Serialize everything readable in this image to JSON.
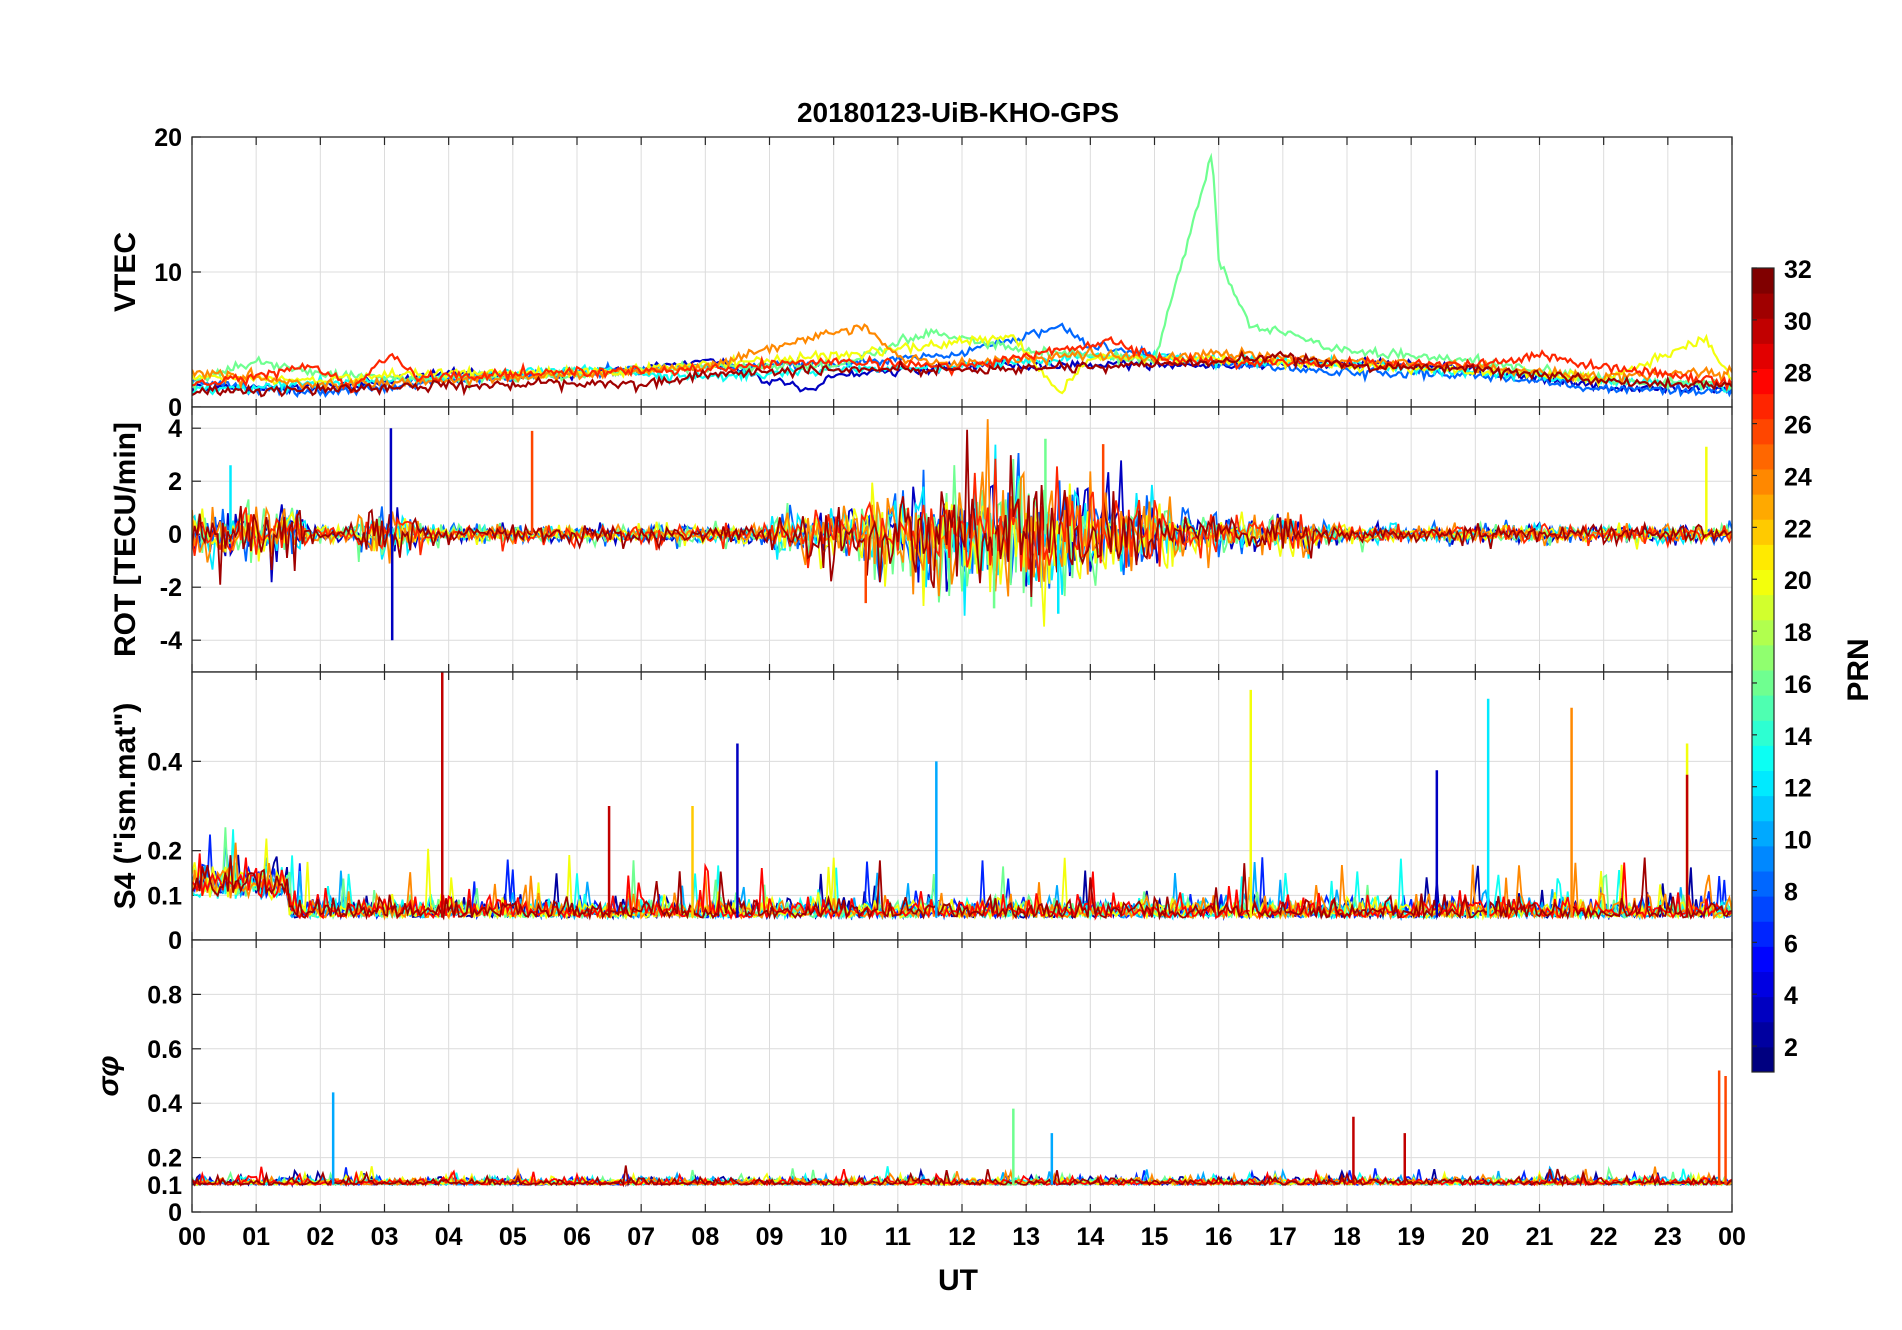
{
  "figure": {
    "title": "20180123-UiB-KHO-GPS",
    "xlabel": "UT",
    "x_tick_labels": [
      "00",
      "01",
      "02",
      "03",
      "04",
      "05",
      "06",
      "07",
      "08",
      "09",
      "10",
      "11",
      "12",
      "13",
      "14",
      "15",
      "16",
      "17",
      "18",
      "19",
      "20",
      "21",
      "22",
      "23",
      "00"
    ]
  },
  "colorbar": {
    "label": "PRN",
    "range": [
      1,
      32
    ],
    "ticks": [
      2,
      4,
      6,
      8,
      10,
      12,
      14,
      16,
      18,
      20,
      22,
      24,
      26,
      28,
      30,
      32
    ],
    "colormap": "jet",
    "levels": 32
  },
  "chart_data": [
    {
      "type": "line",
      "ylabel": "VTEC",
      "ylim": [
        0,
        20
      ],
      "yticks": [
        0,
        10,
        20
      ],
      "xlim": [
        0,
        24
      ],
      "xunit": "UT hour",
      "grid": true,
      "color_by": "PRN",
      "series": [
        {
          "prn": 3,
          "points": [
            [
              0,
              1.5
            ],
            [
              2,
              1.4
            ],
            [
              4,
              2.5
            ],
            [
              6,
              2.3
            ],
            [
              8,
              3.5
            ],
            [
              9.6,
              1.2
            ],
            [
              10,
              2.4
            ],
            [
              12,
              3.0
            ],
            [
              14,
              3.2
            ],
            [
              16,
              3.1
            ],
            [
              18,
              3.3
            ],
            [
              20,
              2.9
            ],
            [
              22,
              1.4
            ],
            [
              24,
              1.3
            ]
          ]
        },
        {
          "prn": 8,
          "points": [
            [
              0,
              1.8
            ],
            [
              2,
              1.0
            ],
            [
              4,
              2.0
            ],
            [
              6,
              2.6
            ],
            [
              8,
              3.0
            ],
            [
              10,
              3.2
            ],
            [
              12,
              4.0
            ],
            [
              13.5,
              6.0
            ],
            [
              14,
              4.5
            ],
            [
              16,
              3.2
            ],
            [
              18,
              2.6
            ],
            [
              20,
              2.4
            ],
            [
              22,
              1.4
            ],
            [
              24,
              1.2
            ]
          ]
        },
        {
          "prn": 13,
          "points": [
            [
              0,
              1.2
            ],
            [
              2,
              1.8
            ],
            [
              4,
              2.2
            ],
            [
              6,
              2.8
            ],
            [
              8,
              2.2
            ],
            [
              10,
              2.8
            ],
            [
              12,
              3.0
            ],
            [
              14,
              3.8
            ],
            [
              16,
              3.5
            ],
            [
              18,
              3.2
            ],
            [
              20,
              2.6
            ],
            [
              22,
              2.0
            ],
            [
              24,
              1.5
            ]
          ]
        },
        {
          "prn": 16,
          "points": [
            [
              0,
              2.0
            ],
            [
              1,
              3.4
            ],
            [
              2,
              2.4
            ],
            [
              4,
              2.0
            ],
            [
              6,
              2.4
            ],
            [
              8,
              3.0
            ],
            [
              10,
              3.0
            ],
            [
              11.5,
              5.5
            ],
            [
              13,
              4.2
            ],
            [
              15,
              3.4
            ],
            [
              15.9,
              18.8
            ],
            [
              16,
              11
            ],
            [
              16.5,
              6.0
            ],
            [
              17,
              5.5
            ],
            [
              18,
              4.2
            ],
            [
              20,
              3.4
            ],
            [
              22,
              2.0
            ],
            [
              24,
              1.6
            ]
          ]
        },
        {
          "prn": 20,
          "points": [
            [
              0,
              2.2
            ],
            [
              2,
              2.0
            ],
            [
              4,
              2.6
            ],
            [
              6,
              2.5
            ],
            [
              8,
              3.1
            ],
            [
              10,
              3.8
            ],
            [
              12,
              4.8
            ],
            [
              12.8,
              5.2
            ],
            [
              13.5,
              1.0
            ],
            [
              14,
              3.6
            ],
            [
              16,
              3.6
            ],
            [
              18,
              3.0
            ],
            [
              20,
              2.8
            ],
            [
              22,
              2.1
            ],
            [
              23.6,
              5.0
            ],
            [
              24,
              2.0
            ]
          ]
        },
        {
          "prn": 24,
          "points": [
            [
              0,
              2.6
            ],
            [
              1,
              2.2
            ],
            [
              2,
              1.6
            ],
            [
              4,
              2.0
            ],
            [
              6,
              2.4
            ],
            [
              8,
              3.0
            ],
            [
              10,
              5.6
            ],
            [
              10.5,
              6.0
            ],
            [
              11,
              3.6
            ],
            [
              12,
              3.2
            ],
            [
              14,
              4.0
            ],
            [
              15,
              3.6
            ],
            [
              16,
              4.0
            ],
            [
              18,
              3.4
            ],
            [
              20,
              3.0
            ],
            [
              22,
              2.2
            ],
            [
              24,
              2.6
            ]
          ]
        },
        {
          "prn": 27,
          "points": [
            [
              0,
              1.6
            ],
            [
              1.8,
              3.0
            ],
            [
              2.5,
              1.4
            ],
            [
              3.1,
              4.0
            ],
            [
              3.5,
              2.2
            ],
            [
              6,
              2.6
            ],
            [
              8,
              2.8
            ],
            [
              10,
              3.4
            ],
            [
              12,
              3.0
            ],
            [
              14,
              4.6
            ],
            [
              14.3,
              5.0
            ],
            [
              15,
              3.6
            ],
            [
              16,
              3.4
            ],
            [
              18,
              3.2
            ],
            [
              20,
              3.1
            ],
            [
              21,
              3.8
            ],
            [
              22,
              3.0
            ],
            [
              24,
              1.8
            ]
          ]
        },
        {
          "prn": 31,
          "points": [
            [
              0,
              1.2
            ],
            [
              2,
              1.2
            ],
            [
              4,
              1.6
            ],
            [
              6,
              1.8
            ],
            [
              7,
              1.6
            ],
            [
              8,
              2.4
            ],
            [
              10,
              2.8
            ],
            [
              12,
              2.8
            ],
            [
              14,
              3.0
            ],
            [
              16,
              3.3
            ],
            [
              17,
              3.8
            ],
            [
              18,
              3.0
            ],
            [
              20,
              2.8
            ],
            [
              22,
              1.9
            ],
            [
              24,
              1.6
            ]
          ]
        }
      ]
    },
    {
      "type": "line",
      "ylabel": "ROT [TECU/min]",
      "ylim": [
        -5.2,
        4.8
      ],
      "yticks": [
        -4,
        -2,
        0,
        2,
        4
      ],
      "xlim": [
        0,
        24
      ],
      "grid": true,
      "color_by": "PRN",
      "series": [
        {
          "prn": 3,
          "points": [
            [
              3.1,
              4.0
            ],
            [
              3.12,
              -4.0
            ]
          ]
        },
        {
          "prn": 12,
          "points": [
            [
              0.6,
              2.6
            ],
            [
              13.5,
              -3.0
            ]
          ]
        },
        {
          "prn": 16,
          "points": [
            [
              13.3,
              3.6
            ],
            [
              12.5,
              -2.8
            ]
          ]
        },
        {
          "prn": 20,
          "points": [
            [
              23.6,
              3.3
            ]
          ]
        },
        {
          "prn": 26,
          "points": [
            [
              5.3,
              3.9
            ],
            [
              14.2,
              3.4
            ],
            [
              10.5,
              -2.6
            ]
          ]
        }
      ]
    },
    {
      "type": "line",
      "ylabel": "S4 (\"ism.mat\")",
      "ylim": [
        0,
        0.6
      ],
      "yticks": [
        0,
        0.1,
        0.2,
        0.4
      ],
      "xlim": [
        0,
        24
      ],
      "grid": true,
      "color_by": "PRN",
      "series": [
        {
          "prn": 3,
          "points": [
            [
              8.5,
              0.44
            ],
            [
              19.4,
              0.38
            ]
          ]
        },
        {
          "prn": 10,
          "points": [
            [
              11.6,
              0.4
            ]
          ]
        },
        {
          "prn": 12,
          "points": [
            [
              20.2,
              0.54
            ]
          ]
        },
        {
          "prn": 20,
          "points": [
            [
              16.5,
              0.56
            ],
            [
              23.3,
              0.44
            ]
          ]
        },
        {
          "prn": 22,
          "points": [
            [
              7.8,
              0.3
            ]
          ]
        },
        {
          "prn": 24,
          "points": [
            [
              21.5,
              0.52
            ]
          ]
        },
        {
          "prn": 30,
          "points": [
            [
              3.9,
              0.6
            ],
            [
              6.5,
              0.3
            ],
            [
              23.3,
              0.37
            ]
          ]
        }
      ]
    },
    {
      "type": "line",
      "ylabel": "σφ",
      "ylim": [
        0,
        1
      ],
      "yticks": [
        0,
        0.1,
        0.2,
        0.4,
        0.6,
        0.8
      ],
      "xlim": [
        0,
        24
      ],
      "grid": true,
      "color_by": "PRN",
      "series": [
        {
          "prn": 10,
          "points": [
            [
              2.2,
              0.44
            ],
            [
              13.4,
              0.29
            ]
          ]
        },
        {
          "prn": 16,
          "points": [
            [
              12.8,
              0.38
            ]
          ]
        },
        {
          "prn": 30,
          "points": [
            [
              18.1,
              0.35
            ],
            [
              18.9,
              0.29
            ]
          ]
        },
        {
          "prn": 26,
          "points": [
            [
              23.8,
              0.52
            ],
            [
              23.9,
              0.5
            ]
          ]
        }
      ]
    }
  ]
}
